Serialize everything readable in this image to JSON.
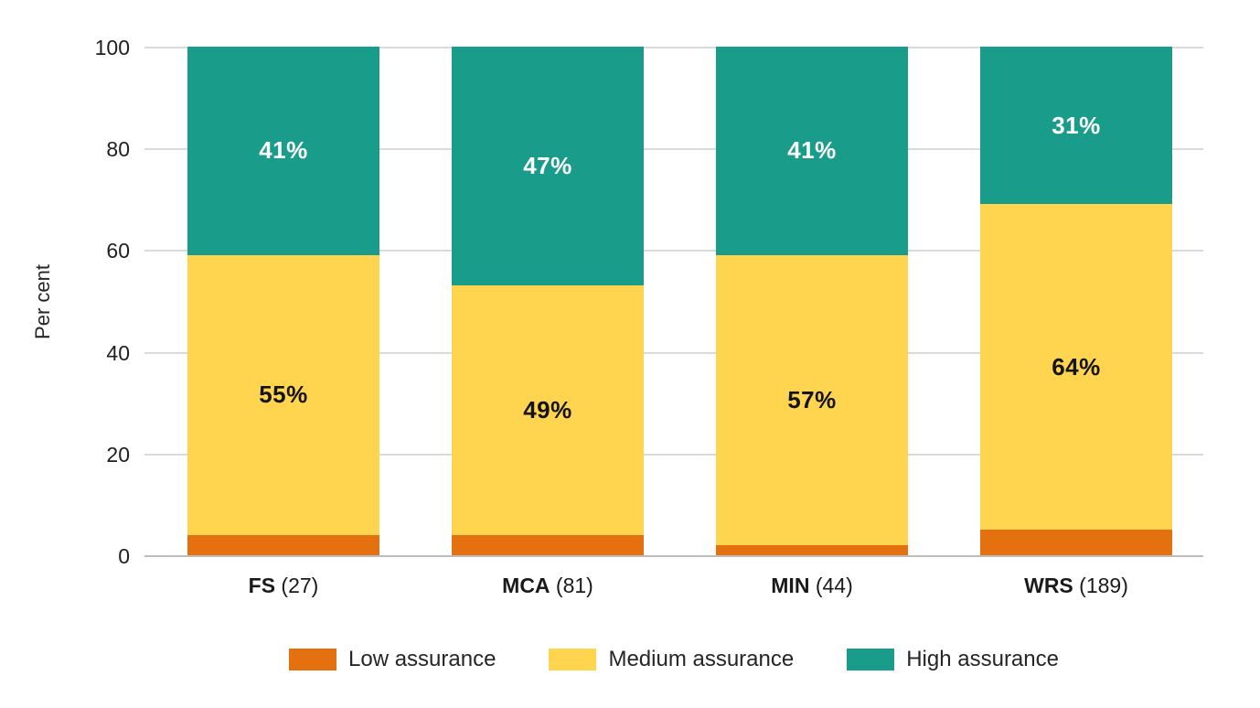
{
  "chart_data": {
    "type": "bar",
    "stacked": true,
    "orientation": "vertical",
    "unit": "percent",
    "ylabel": "Per cent",
    "ylim": [
      0,
      100
    ],
    "yticks": [
      0,
      20,
      40,
      60,
      80,
      100
    ],
    "grid": true,
    "legend_position": "bottom",
    "categories": [
      {
        "label": "FS (27)",
        "name": "FS",
        "count": "(27)"
      },
      {
        "label": "MCA (81)",
        "name": "MCA",
        "count": "(81)"
      },
      {
        "label": "MIN (44)",
        "name": "MIN",
        "count": "(44)"
      },
      {
        "label": "WRS (189)",
        "name": "WRS",
        "count": "(189)"
      }
    ],
    "series": [
      {
        "name": "Low assurance",
        "color": "#E5700F",
        "values": [
          4,
          4,
          2,
          5
        ],
        "data_labels": [
          "",
          "",
          "",
          ""
        ],
        "label_color": "#ffffff"
      },
      {
        "name": "Medium assurance",
        "color": "#FFD44F",
        "values": [
          55,
          49,
          57,
          64
        ],
        "data_labels": [
          "55%",
          "49%",
          "57%",
          "64%"
        ],
        "label_color": "#141414"
      },
      {
        "name": "High assurance",
        "color": "#1A9C8B",
        "values": [
          41,
          47,
          41,
          31
        ],
        "data_labels": [
          "41%",
          "47%",
          "41%",
          "31%"
        ],
        "label_color": "#ffffff"
      }
    ]
  },
  "colors": {
    "gridline": "#DADADA",
    "baseline": "#BDBDBD",
    "tick_text": "#1f1f1f",
    "axis_title_text": "#262626",
    "category_text": "#1a1a1a",
    "legend_text": "#262626",
    "background": "#ffffff"
  }
}
